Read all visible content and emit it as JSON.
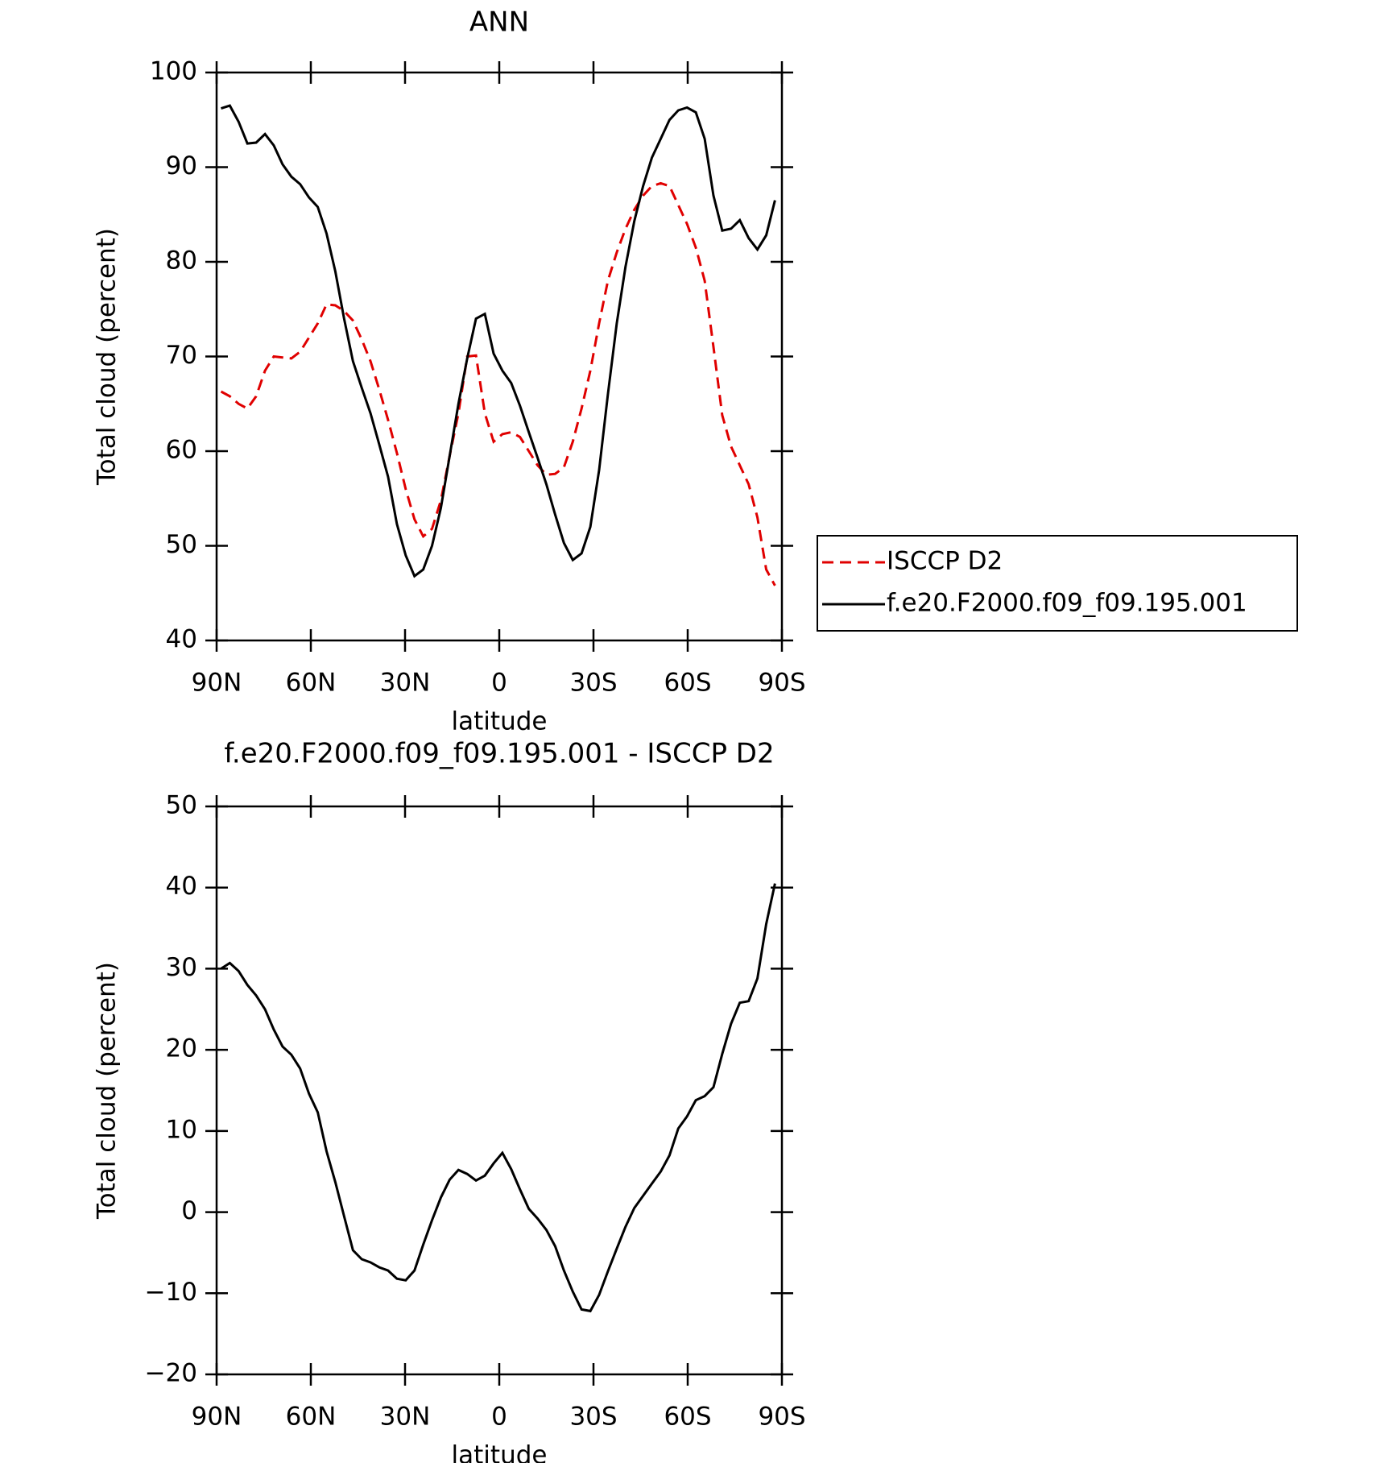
{
  "chart_data": [
    {
      "type": "line",
      "title": "ANN",
      "xlabel": "latitude",
      "ylabel": "Total cloud (percent)",
      "x": [
        88.6,
        85.8,
        83.0,
        80.2,
        77.4,
        74.6,
        71.8,
        69.0,
        66.2,
        63.4,
        60.6,
        57.8,
        55.0,
        52.2,
        49.4,
        46.6,
        43.8,
        41.0,
        38.2,
        35.4,
        32.6,
        29.8,
        27.0,
        24.2,
        21.4,
        18.6,
        15.8,
        13.0,
        10.2,
        7.4,
        4.6,
        1.8,
        -1.0,
        -3.8,
        -6.6,
        -9.4,
        -12.2,
        -15.0,
        -17.8,
        -20.6,
        -23.4,
        -26.2,
        -29.0,
        -31.8,
        -34.6,
        -37.4,
        -40.2,
        -43.0,
        -45.8,
        -48.6,
        -51.4,
        -54.2,
        -57.0,
        -59.8,
        -62.6,
        -65.4,
        -68.2,
        -71.0,
        -73.8,
        -76.6,
        -79.4,
        -82.2,
        -85.0,
        -87.8
      ],
      "xlim": [
        90,
        -90
      ],
      "xticks": [
        {
          "value": 90,
          "label": "90N"
        },
        {
          "value": 60,
          "label": "60N"
        },
        {
          "value": 30,
          "label": "30N"
        },
        0,
        {
          "value": -30,
          "label": "30S"
        },
        {
          "value": -60,
          "label": "60S"
        },
        {
          "value": -90,
          "label": "90S"
        }
      ],
      "ylim": [
        40,
        100
      ],
      "yticks": [
        40,
        50,
        60,
        70,
        80,
        90,
        100
      ],
      "legend": "outside-right",
      "series": [
        {
          "name": "ISCCP D2",
          "color": "#e00000",
          "dash": "dashed",
          "values": [
            66.3,
            65.8,
            65.0,
            64.5,
            65.8,
            68.5,
            70.0,
            69.9,
            69.8,
            70.5,
            72.0,
            73.5,
            75.5,
            75.4,
            74.8,
            73.8,
            71.8,
            69.5,
            66.5,
            63.3,
            59.8,
            56.0,
            52.8,
            51.0,
            51.8,
            54.8,
            59.5,
            64.0,
            70.0,
            70.1,
            64.0,
            61.0,
            61.8,
            62.0,
            61.5,
            60.0,
            58.5,
            57.5,
            57.6,
            58.3,
            61.0,
            64.5,
            68.5,
            73.5,
            78.0,
            81.0,
            83.5,
            85.5,
            87.0,
            88.0,
            88.3,
            88.0,
            86.0,
            84.0,
            81.5,
            78.0,
            71.0,
            63.8,
            60.5,
            58.5,
            56.5,
            53.0,
            47.5,
            45.8
          ]
        },
        {
          "name": "f.e20.F2000.f09_f09.195.001",
          "color": "#000000",
          "dash": "solid",
          "values": [
            96.2,
            96.5,
            94.8,
            92.5,
            92.6,
            93.5,
            92.3,
            90.3,
            89.0,
            88.2,
            86.8,
            85.8,
            83.0,
            79.0,
            74.0,
            69.5,
            66.7,
            64.0,
            60.7,
            57.3,
            52.3,
            49.0,
            46.8,
            47.5,
            50.0,
            54.0,
            59.5,
            65.0,
            69.8,
            74.0,
            74.5,
            70.3,
            68.5,
            67.2,
            64.8,
            62.0,
            59.3,
            56.5,
            53.3,
            50.3,
            48.5,
            49.2,
            52.0,
            58.0,
            66.0,
            73.5,
            79.5,
            84.3,
            88.0,
            91.0,
            93.0,
            95.0,
            96.0,
            96.3,
            95.8,
            93.0,
            87.0,
            83.3,
            83.5,
            84.4,
            82.5,
            81.3,
            82.8,
            86.5
          ]
        }
      ]
    },
    {
      "type": "line",
      "title": "f.e20.F2000.f09_f09.195.001 - ISCCP D2",
      "xlabel": "latitude",
      "ylabel": "Total cloud (percent)",
      "x": [
        88.6,
        85.8,
        83.0,
        80.2,
        77.4,
        74.6,
        71.8,
        69.0,
        66.2,
        63.4,
        60.6,
        57.8,
        55.0,
        52.2,
        49.4,
        46.6,
        43.8,
        41.0,
        38.2,
        35.4,
        32.6,
        29.8,
        27.0,
        24.2,
        21.4,
        18.6,
        15.8,
        13.0,
        10.2,
        7.4,
        4.6,
        1.8,
        -1.0,
        -3.8,
        -6.6,
        -9.4,
        -12.2,
        -15.0,
        -17.8,
        -20.6,
        -23.4,
        -26.2,
        -29.0,
        -31.8,
        -34.6,
        -37.4,
        -40.2,
        -43.0,
        -45.8,
        -48.6,
        -51.4,
        -54.2,
        -57.0,
        -59.8,
        -62.6,
        -65.4,
        -68.2,
        -71.0,
        -73.8,
        -76.6,
        -79.4,
        -82.2,
        -85.0,
        -87.8
      ],
      "xlim": [
        90,
        -90
      ],
      "xticks": [
        {
          "value": 90,
          "label": "90N"
        },
        {
          "value": 60,
          "label": "60N"
        },
        {
          "value": 30,
          "label": "30N"
        },
        0,
        {
          "value": -30,
          "label": "30S"
        },
        {
          "value": -60,
          "label": "60S"
        },
        {
          "value": -90,
          "label": "90S"
        }
      ],
      "ylim": [
        -20,
        50
      ],
      "yticks": [
        {
          "value": -20,
          "label": "−20"
        },
        {
          "value": -10,
          "label": "−10"
        },
        0,
        10,
        20,
        30,
        40,
        50
      ],
      "series": [
        {
          "color": "#000000",
          "dash": "solid",
          "values": [
            30.0,
            30.7,
            29.7,
            28.0,
            26.7,
            25.0,
            22.5,
            20.4,
            19.4,
            17.7,
            14.6,
            12.3,
            7.5,
            3.7,
            -0.5,
            -4.7,
            -5.8,
            -6.2,
            -6.8,
            -7.2,
            -8.2,
            -8.4,
            -7.2,
            -4.0,
            -1.0,
            1.8,
            4.0,
            5.2,
            4.7,
            3.9,
            4.5,
            6.0,
            7.3,
            5.3,
            2.8,
            0.4,
            -0.8,
            -2.2,
            -4.2,
            -7.2,
            -9.8,
            -12.0,
            -12.2,
            -10.2,
            -7.3,
            -4.5,
            -1.8,
            0.5,
            2.0,
            3.5,
            5.0,
            7.0,
            10.3,
            11.8,
            13.8,
            14.3,
            15.4,
            19.5,
            23.2,
            25.8,
            26.0,
            28.8,
            35.5,
            40.5
          ]
        }
      ]
    }
  ]
}
